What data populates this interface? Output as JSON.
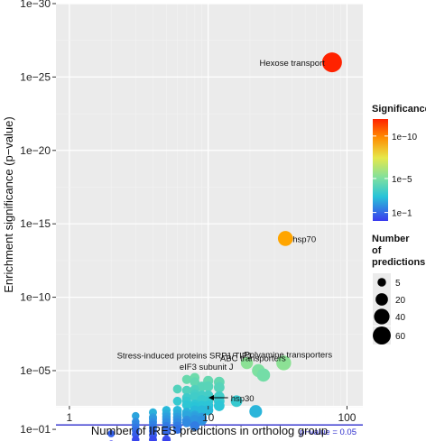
{
  "chart_data": {
    "type": "scatter",
    "xlabel": "Number of IRES predictions in ortholog group",
    "ylabel": "Enrichment significance (p−value)",
    "x_scale": "log",
    "y_scale": "log",
    "xlim": [
      0.8,
      130
    ],
    "ylim": [
      0.0025,
      1e-30
    ],
    "x_ticks": [
      {
        "v": 1,
        "label": "1"
      },
      {
        "v": 10,
        "label": "10"
      },
      {
        "v": 100,
        "label": "100"
      }
    ],
    "y_ticks": [
      {
        "v": 1e-30,
        "label": "1e−30"
      },
      {
        "v": 1e-25,
        "label": "1e−25"
      },
      {
        "v": 1e-20,
        "label": "1e−20"
      },
      {
        "v": 1e-15,
        "label": "1e−15"
      },
      {
        "v": 1e-10,
        "label": "1e−10"
      },
      {
        "v": 1e-05,
        "label": "1e−05"
      },
      {
        "v": 0.1,
        "label": "1e−01"
      }
    ],
    "grid": true,
    "threshold": {
      "p": 0.05,
      "label": "p−value = 0.05",
      "color": "#2b2bcc"
    },
    "legend": {
      "position": "right",
      "significance": {
        "title": "Significance",
        "labels": [
          {
            "v": 1e-10,
            "label": "1e−10"
          },
          {
            "v": 1e-05,
            "label": "1e−5"
          },
          {
            "v": 0.1,
            "label": "1e−1"
          }
        ]
      },
      "size": {
        "title_lines": [
          "Number",
          "of",
          "predictions"
        ],
        "labels": [
          "5",
          "20",
          "40",
          "60"
        ],
        "values": [
          5,
          20,
          40,
          60
        ]
      }
    },
    "annotations": [
      {
        "text": "Hexose transport",
        "x": 78,
        "p": 1e-26
      },
      {
        "text": "hsp70",
        "x": 36,
        "p": 1e-14
      },
      {
        "text": "Stress-induced proteins SRP1/TIP1",
        "x": 19,
        "p": 3e-06
      },
      {
        "text": "Polyamine transporters",
        "x": 36,
        "p": 4e-06
      },
      {
        "text": "ABC transporters",
        "x": 22,
        "p": 8e-06
      },
      {
        "text": "eIF3 subunit J",
        "x": 10,
        "p": 2e-05
      },
      {
        "text": "hsp30",
        "x": 10,
        "p": 0.0007,
        "arrow": true
      }
    ],
    "points": [
      {
        "x": 78,
        "p": 1e-26,
        "n": 78
      },
      {
        "x": 36,
        "p": 1e-14,
        "n": 36
      },
      {
        "x": 35,
        "p": 3e-06,
        "n": 35
      },
      {
        "x": 19,
        "p": 3e-06,
        "n": 19
      },
      {
        "x": 23,
        "p": 1e-05,
        "n": 23
      },
      {
        "x": 25,
        "p": 2e-05,
        "n": 25
      },
      {
        "x": 8,
        "p": 3e-05,
        "n": 8
      },
      {
        "x": 7,
        "p": 4e-05,
        "n": 7
      },
      {
        "x": 8,
        "p": 6e-05,
        "n": 8
      },
      {
        "x": 10,
        "p": 5e-05,
        "n": 10
      },
      {
        "x": 12,
        "p": 6e-05,
        "n": 12
      },
      {
        "x": 9,
        "p": 0.00012,
        "n": 9
      },
      {
        "x": 6,
        "p": 0.00018,
        "n": 6
      },
      {
        "x": 7,
        "p": 0.00022,
        "n": 7
      },
      {
        "x": 8,
        "p": 0.0002,
        "n": 8
      },
      {
        "x": 10,
        "p": 0.00012,
        "n": 10
      },
      {
        "x": 12,
        "p": 0.00014,
        "n": 12
      },
      {
        "x": 8,
        "p": 0.0004,
        "n": 8
      },
      {
        "x": 9,
        "p": 0.0005,
        "n": 9
      },
      {
        "x": 10,
        "p": 0.0005,
        "n": 10
      },
      {
        "x": 8,
        "p": 0.0006,
        "n": 8
      },
      {
        "x": 7,
        "p": 0.0007,
        "n": 7
      },
      {
        "x": 12,
        "p": 0.0006,
        "n": 12
      },
      {
        "x": 10,
        "p": 0.0012,
        "n": 10
      },
      {
        "x": 6,
        "p": 0.0012,
        "n": 6
      },
      {
        "x": 7,
        "p": 0.0012,
        "n": 7
      },
      {
        "x": 9,
        "p": 0.001,
        "n": 9
      },
      {
        "x": 12,
        "p": 0.0012,
        "n": 12
      },
      {
        "x": 16,
        "p": 0.0012,
        "n": 16
      },
      {
        "x": 8,
        "p": 0.002,
        "n": 8
      },
      {
        "x": 7,
        "p": 0.0022,
        "n": 7
      },
      {
        "x": 9,
        "p": 0.0025,
        "n": 9
      },
      {
        "x": 10,
        "p": 0.0025,
        "n": 10
      },
      {
        "x": 12,
        "p": 0.0025,
        "n": 12
      },
      {
        "x": 8,
        "p": 0.003,
        "n": 8
      },
      {
        "x": 5,
        "p": 0.005,
        "n": 5
      },
      {
        "x": 6,
        "p": 0.005,
        "n": 6
      },
      {
        "x": 8,
        "p": 0.005,
        "n": 8
      },
      {
        "x": 9,
        "p": 0.005,
        "n": 9
      },
      {
        "x": 10,
        "p": 0.005,
        "n": 10
      },
      {
        "x": 7,
        "p": 0.007,
        "n": 7
      },
      {
        "x": 4,
        "p": 0.007,
        "n": 4
      },
      {
        "x": 22,
        "p": 0.006,
        "n": 22
      },
      {
        "x": 5,
        "p": 0.009,
        "n": 5
      },
      {
        "x": 6,
        "p": 0.009,
        "n": 6
      },
      {
        "x": 7,
        "p": 0.011,
        "n": 7
      },
      {
        "x": 8,
        "p": 0.011,
        "n": 8
      },
      {
        "x": 3,
        "p": 0.012,
        "n": 3
      },
      {
        "x": 4,
        "p": 0.015,
        "n": 4
      },
      {
        "x": 5,
        "p": 0.014,
        "n": 5
      },
      {
        "x": 6,
        "p": 0.015,
        "n": 6
      },
      {
        "x": 8,
        "p": 0.015,
        "n": 8
      },
      {
        "x": 9,
        "p": 0.016,
        "n": 9
      },
      {
        "x": 4,
        "p": 0.02,
        "n": 4
      },
      {
        "x": 5,
        "p": 0.021,
        "n": 5
      },
      {
        "x": 6,
        "p": 0.022,
        "n": 6
      },
      {
        "x": 7,
        "p": 0.024,
        "n": 7
      },
      {
        "x": 8,
        "p": 0.022,
        "n": 8
      },
      {
        "x": 9,
        "p": 0.025,
        "n": 9
      },
      {
        "x": 3,
        "p": 0.03,
        "n": 3
      },
      {
        "x": 4,
        "p": 0.032,
        "n": 4
      },
      {
        "x": 5,
        "p": 0.033,
        "n": 5
      },
      {
        "x": 6,
        "p": 0.035,
        "n": 6
      },
      {
        "x": 7,
        "p": 0.035,
        "n": 7
      },
      {
        "x": 3,
        "p": 0.045,
        "n": 3
      },
      {
        "x": 4,
        "p": 0.05,
        "n": 4
      },
      {
        "x": 5,
        "p": 0.06,
        "n": 5
      },
      {
        "x": 6,
        "p": 0.06,
        "n": 6
      },
      {
        "x": 8,
        "p": 0.06,
        "n": 8
      },
      {
        "x": 3,
        "p": 0.075,
        "n": 3
      },
      {
        "x": 4,
        "p": 0.08,
        "n": 4
      },
      {
        "x": 5,
        "p": 0.08,
        "n": 5
      },
      {
        "x": 6,
        "p": 0.1,
        "n": 6
      },
      {
        "x": 3,
        "p": 0.12,
        "n": 3
      },
      {
        "x": 4,
        "p": 0.13,
        "n": 4
      },
      {
        "x": 5,
        "p": 0.14,
        "n": 5
      },
      {
        "x": 2,
        "p": 0.2,
        "n": 2
      },
      {
        "x": 3,
        "p": 0.22,
        "n": 3
      },
      {
        "x": 4,
        "p": 0.25,
        "n": 4
      },
      {
        "x": 3,
        "p": 0.5,
        "n": 3
      },
      {
        "x": 4,
        "p": 0.5,
        "n": 4
      },
      {
        "x": 5,
        "p": 0.5,
        "n": 5
      },
      {
        "x": 2,
        "p": 1,
        "n": 2
      },
      {
        "x": 3,
        "p": 1,
        "n": 3
      },
      {
        "x": 4,
        "p": 1,
        "n": 4
      },
      {
        "x": 5,
        "p": 1,
        "n": 5
      }
    ]
  }
}
